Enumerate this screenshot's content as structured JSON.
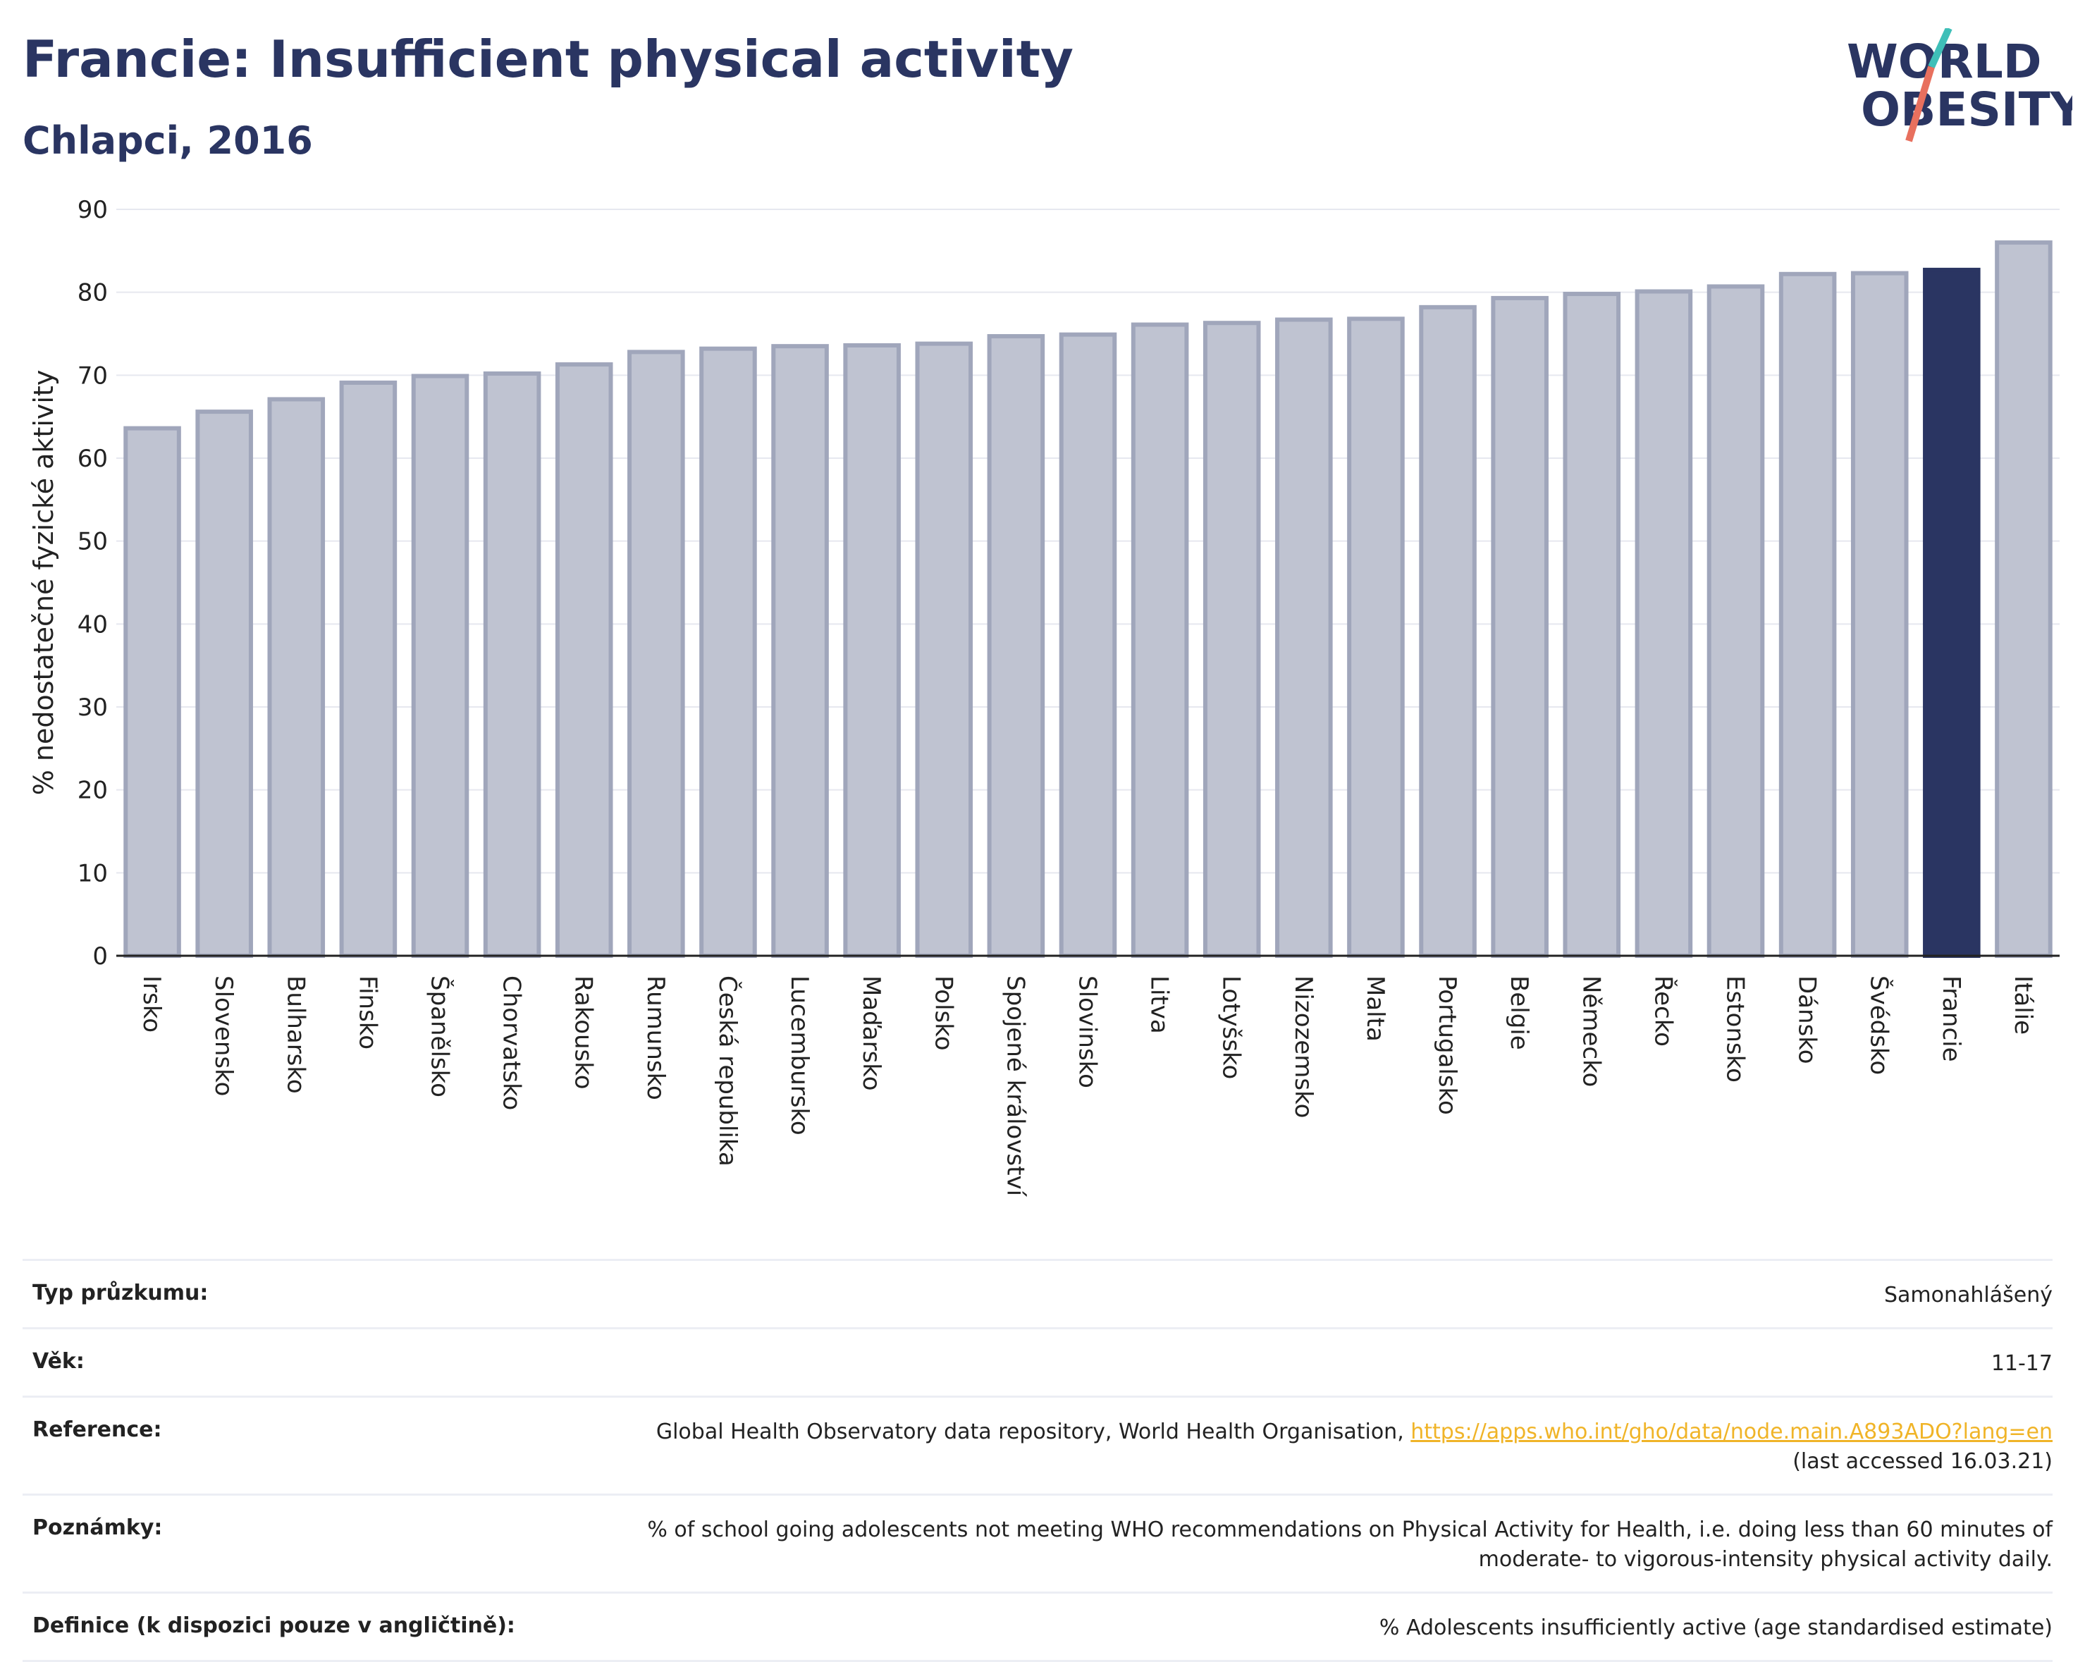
{
  "header": {
    "title": "Francie: Insufficient physical activity",
    "subtitle": "Chlapci, 2016"
  },
  "logo": {
    "line1": "WORLD",
    "line2": "OBESITY"
  },
  "colors": {
    "highlight": "#2a3562",
    "bar_fill": "#bfc3d1",
    "bar_stroke": "#a0a6bb",
    "accent_teal": "#3fbfb8",
    "accent_red": "#e8705e",
    "link": "#f0b428"
  },
  "chart_data": {
    "type": "bar",
    "ylabel": "% nedostatečné fyzické aktivity",
    "ylim": [
      0,
      90
    ],
    "yticks": [
      0,
      10,
      20,
      30,
      40,
      50,
      60,
      70,
      80,
      90
    ],
    "grid": true,
    "highlight": "Francie",
    "categories": [
      "Irsko",
      "Slovensko",
      "Bulharsko",
      "Finsko",
      "Španělsko",
      "Chorvatsko",
      "Rakousko",
      "Rumunsko",
      "Česká republika",
      "Lucembursko",
      "Maďarsko",
      "Polsko",
      "Spojené království",
      "Slovinsko",
      "Litva",
      "Lotyšsko",
      "Nizozemsko",
      "Malta",
      "Portugalsko",
      "Belgie",
      "Německo",
      "Řecko",
      "Estonsko",
      "Dánsko",
      "Švédsko",
      "Francie",
      "Itálie"
    ],
    "values": [
      63.6,
      65.6,
      67.1,
      69.1,
      69.9,
      70.2,
      71.3,
      72.8,
      73.2,
      73.5,
      73.6,
      73.8,
      74.7,
      74.9,
      76.1,
      76.3,
      76.7,
      76.8,
      78.2,
      79.3,
      79.8,
      80.1,
      80.7,
      82.2,
      82.3,
      82.7,
      86.0
    ]
  },
  "info": {
    "rows": [
      {
        "key": "Typ průzkumu:",
        "value": "Samonahlášený"
      },
      {
        "key": "Věk:",
        "value": "11-17"
      },
      {
        "key": "Reference:",
        "value": "Global Health Observatory data repository, World Health Organisation, ",
        "link": "https://apps.who.int/gho/data/node.main.A893ADO?lang=en",
        "value2": "(last accessed 16.03.21)"
      },
      {
        "key": "Poznámky:",
        "value": "% of school going adolescents not meeting WHO recommendations on Physical Activity for Health, i.e. doing less than 60 minutes of",
        "value2": "moderate- to vigorous-intensity physical activity daily."
      },
      {
        "key": "Definice (k dispozici pouze v angličtině):",
        "value": "% Adolescents insufficiently active (age standardised estimate)"
      }
    ]
  }
}
